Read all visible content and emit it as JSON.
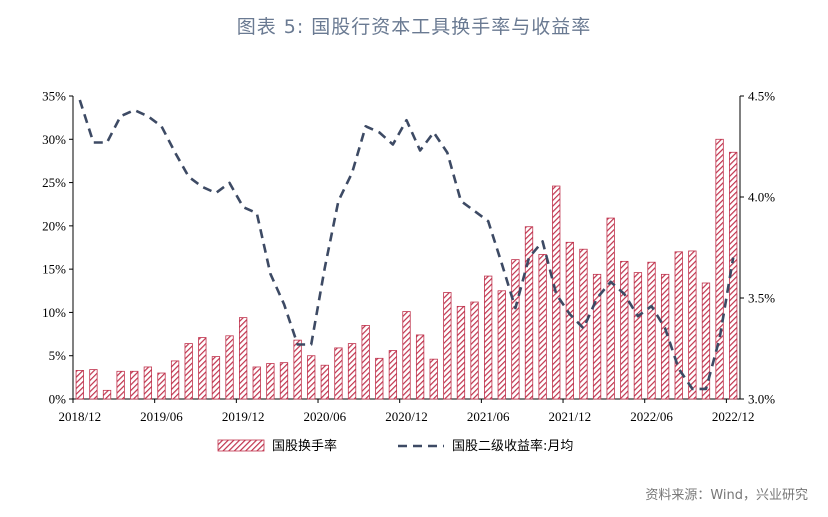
{
  "title": "图表 5:   国股行资本工具换手率与收益率",
  "source": "资料来源：Wind，兴业研究",
  "chart_data": {
    "type": "bar",
    "x_tick_labels": [
      "2018/12",
      "2019/06",
      "2019/12",
      "2020/06",
      "2020/12",
      "2021/06",
      "2021/12",
      "2022/06",
      "2022/12"
    ],
    "x_tick_index": [
      0,
      6,
      12,
      18,
      24,
      30,
      36,
      42,
      48
    ],
    "left_axis": {
      "ylim": [
        0,
        35
      ],
      "ticks": [
        0,
        5,
        10,
        15,
        20,
        25,
        30,
        35
      ],
      "tick_labels": [
        "0%",
        "5%",
        "10%",
        "15%",
        "20%",
        "25%",
        "30%",
        "35%"
      ]
    },
    "right_axis": {
      "ylim": [
        3.0,
        4.5
      ],
      "ticks": [
        3.0,
        3.5,
        4.0,
        4.5
      ],
      "tick_labels": [
        "3.0%",
        "3.5%",
        "4.0%",
        "4.5%"
      ]
    },
    "bar_color": "#c0334d",
    "line_color": "#3d4a64",
    "series": [
      {
        "name": "国股换手率",
        "axis": "left",
        "style": "hatched-bar",
        "values": [
          3.3,
          3.4,
          1.0,
          3.2,
          3.2,
          3.7,
          3.0,
          4.4,
          6.4,
          7.1,
          4.9,
          7.3,
          9.4,
          3.7,
          4.1,
          4.2,
          6.8,
          5.0,
          3.9,
          5.9,
          6.4,
          8.5,
          4.7,
          5.6,
          10.1,
          7.4,
          4.6,
          12.3,
          10.7,
          11.2,
          14.2,
          12.5,
          16.1,
          19.9,
          16.7,
          24.6,
          18.1,
          17.3,
          14.4,
          20.9,
          15.9,
          14.6,
          15.8,
          14.4,
          17.0,
          17.1,
          13.4,
          30.0,
          28.5
        ]
      },
      {
        "name": "国股二级收益率:月均",
        "axis": "right",
        "style": "dashed-line",
        "values": [
          4.48,
          4.27,
          4.27,
          4.4,
          4.43,
          4.4,
          4.35,
          4.22,
          4.1,
          4.05,
          4.02,
          4.07,
          3.95,
          3.92,
          3.62,
          3.47,
          3.27,
          3.27,
          3.65,
          3.98,
          4.12,
          4.35,
          4.32,
          4.26,
          4.38,
          4.23,
          4.32,
          4.22,
          3.98,
          3.93,
          3.88,
          3.67,
          3.45,
          3.7,
          3.78,
          3.52,
          3.42,
          3.35,
          3.5,
          3.58,
          3.52,
          3.41,
          3.46,
          3.35,
          3.15,
          3.05,
          3.05,
          3.3,
          3.7
        ]
      }
    ],
    "legend": {
      "placement": "bottom"
    }
  }
}
